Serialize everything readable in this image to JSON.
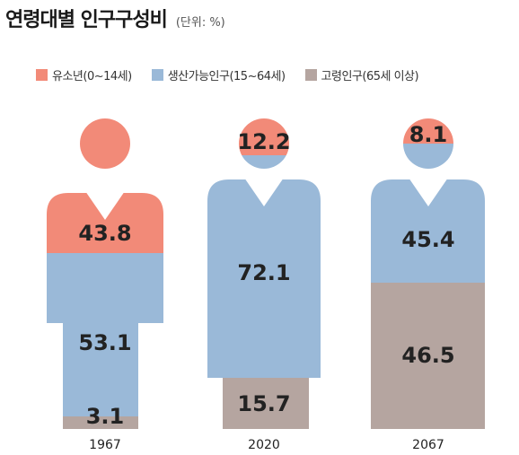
{
  "title": "연령대별 인구구성비",
  "unit": "(단위: %)",
  "colors": {
    "youth": "#f28a78",
    "working": "#9ab9d8",
    "elderly": "#b5a5a0"
  },
  "legend": [
    {
      "key": "youth",
      "label": "유소년(0~14세)"
    },
    {
      "key": "working",
      "label": "생산가능인구(15~64세)"
    },
    {
      "key": "elderly",
      "label": "고령인구(65세 이상)"
    }
  ],
  "chart_data": {
    "type": "bar",
    "stacked": true,
    "categories": [
      "1967",
      "2020",
      "2067"
    ],
    "series": [
      {
        "name": "유소년(0~14세)",
        "values": [
          43.8,
          12.2,
          8.1
        ]
      },
      {
        "name": "생산가능인구(15~64세)",
        "values": [
          53.1,
          72.1,
          45.4
        ]
      },
      {
        "name": "고령인구(65세 이상)",
        "values": [
          3.1,
          15.7,
          46.5
        ]
      }
    ],
    "labels": [
      [
        "43.8",
        "53.1",
        "3.1"
      ],
      [
        "12.2",
        "72.1",
        "15.7"
      ],
      [
        "8.1",
        "45.4",
        "46.5"
      ]
    ]
  }
}
